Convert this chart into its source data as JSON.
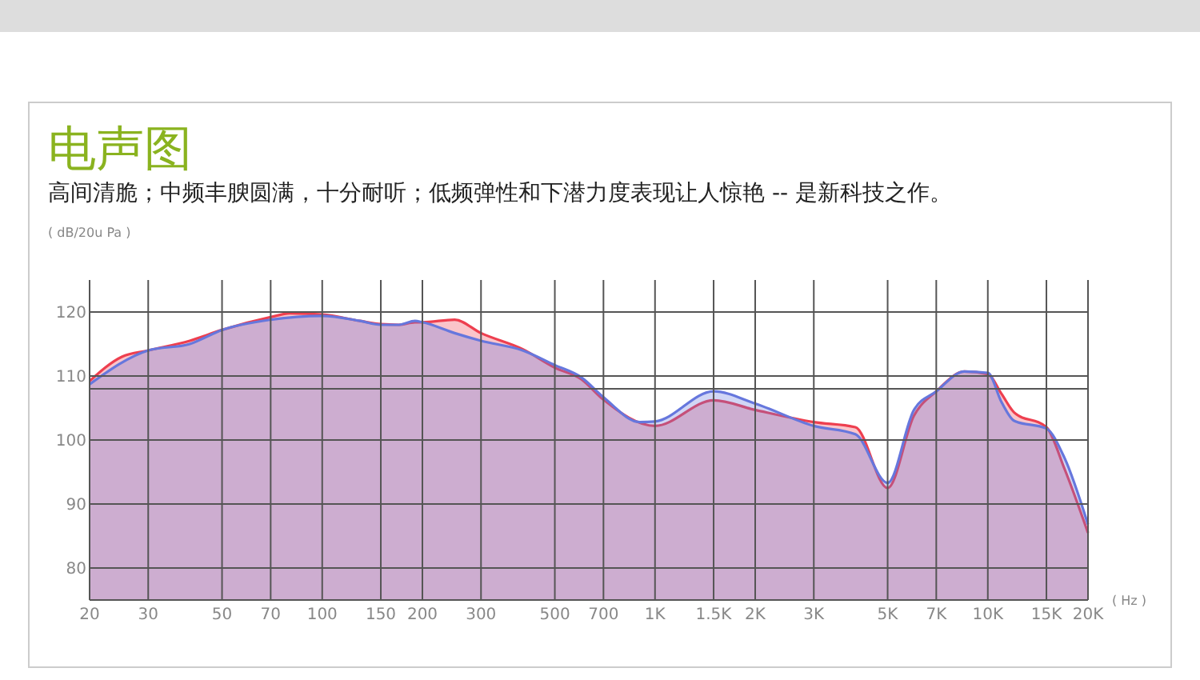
{
  "chart_data": {
    "type": "area",
    "title": "电声图",
    "subtitle": "高间清脆；中频丰腴圆满，十分耐听；低频弹性和下潜力度表现让人惊艳 -- 是新科技之作。",
    "ylabel": "( dB/20u Pa )",
    "xlabel": "( Hz )",
    "log": "x",
    "grid": true,
    "xlim": [
      20,
      20000
    ],
    "ylim": [
      75,
      125
    ],
    "xticks": [
      20,
      30,
      50,
      70,
      100,
      150,
      200,
      300,
      500,
      700,
      {
        "value": 1000,
        "label": "1K"
      },
      {
        "value": 1500,
        "label": "1.5K"
      },
      {
        "value": 2000,
        "label": "2K"
      },
      {
        "value": 3000,
        "label": "3K"
      },
      {
        "value": 5000,
        "label": "5K"
      },
      {
        "value": 7000,
        "label": "7K"
      },
      {
        "value": 10000,
        "label": "10K"
      },
      {
        "value": 15000,
        "label": "15K"
      },
      {
        "value": 20000,
        "label": "20K"
      }
    ],
    "yticks": [
      80,
      90,
      100,
      110,
      120
    ],
    "ref_lines": [
      {
        "axis": "y",
        "value": 108,
        "color": "#555555"
      }
    ],
    "series": [
      {
        "color": "#ee3f4f",
        "x": [
          20,
          25,
          30,
          40,
          50,
          70,
          80,
          100,
          130,
          150,
          170,
          190,
          200,
          250,
          300,
          400,
          500,
          600,
          700,
          1000,
          1500,
          2000,
          3000,
          4000,
          5000,
          6000,
          7000,
          8500,
          10000,
          11000,
          12000,
          15000,
          17000,
          20000
        ],
        "values": [
          109.2,
          113,
          114,
          115.5,
          117.2,
          119.2,
          119.8,
          119.6,
          118.6,
          118.1,
          118,
          118.4,
          118.4,
          118.8,
          116.7,
          114.2,
          111.3,
          109.5,
          106.3,
          102.2,
          106.2,
          104.7,
          102.8,
          102,
          92.5,
          103.8,
          107.6,
          110.7,
          110.3,
          107.2,
          104.3,
          102,
          95.5,
          85.5
        ]
      },
      {
        "color": "#6677dd",
        "x": [
          20,
          30,
          40,
          50,
          70,
          100,
          130,
          150,
          170,
          190,
          200,
          250,
          300,
          400,
          500,
          600,
          700,
          900,
          1000,
          1500,
          2000,
          3000,
          4000,
          5000,
          6000,
          7000,
          8500,
          10000,
          11000,
          12000,
          15000,
          17000,
          20000
        ],
        "values": [
          108.7,
          114,
          115,
          117.2,
          118.8,
          119.4,
          118.6,
          118,
          118,
          118.6,
          118.4,
          116.7,
          115.5,
          114,
          111.7,
          109.8,
          106.7,
          102.8,
          102.9,
          107.6,
          105.7,
          102.2,
          100.9,
          93.3,
          104.7,
          107.6,
          110.7,
          110.5,
          105.9,
          103,
          101.8,
          97.2,
          86.8
        ]
      }
    ]
  }
}
